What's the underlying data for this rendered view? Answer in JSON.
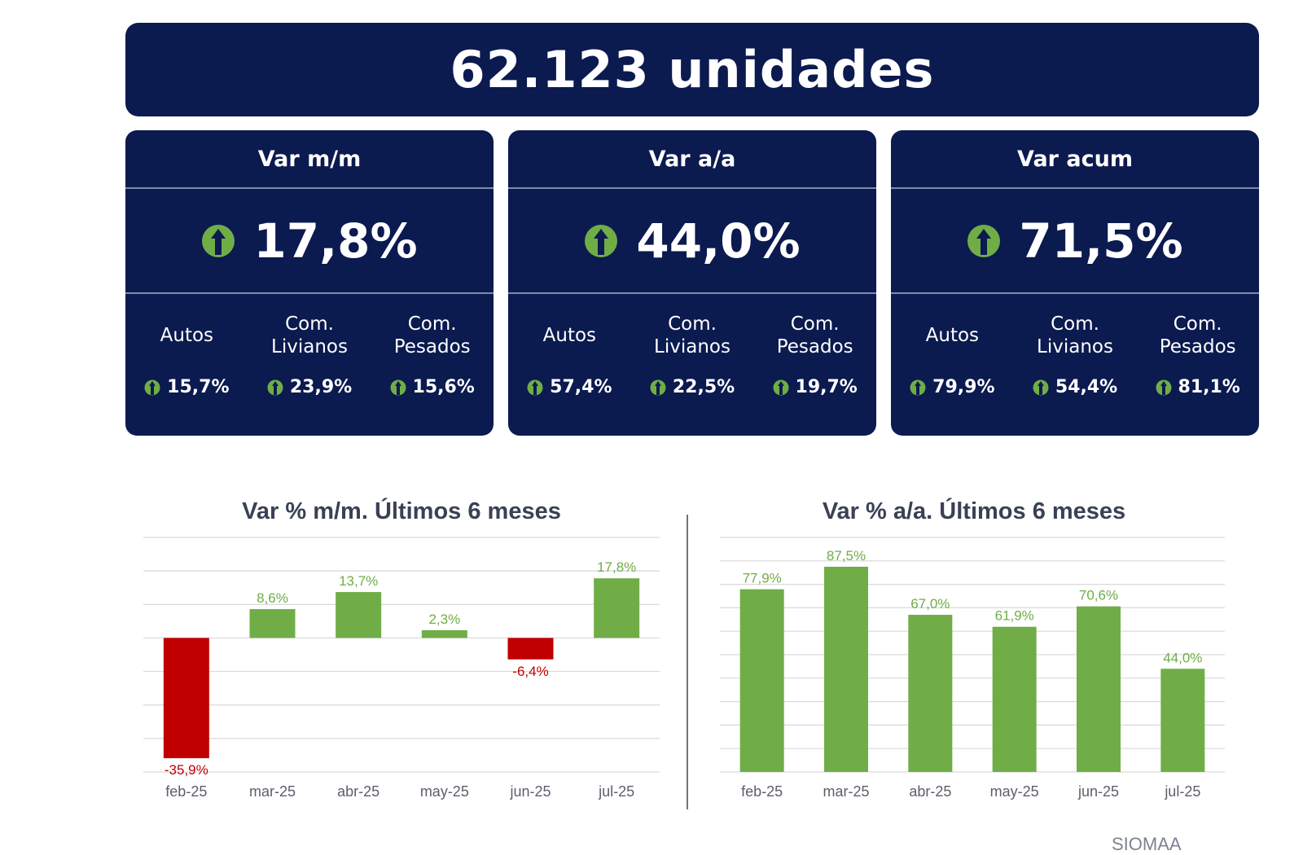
{
  "header": {
    "total": "62.123 unidades"
  },
  "colors": {
    "navy": "#0b1a4f",
    "positive": "#70ad47",
    "negative": "#c00000",
    "arrow": "#70ad47"
  },
  "cards": [
    {
      "title": "Var m/m",
      "value": "17,8%",
      "sub": [
        {
          "label": "Autos",
          "value": "15,7%"
        },
        {
          "label": "Com.\nLivianos",
          "value": "23,9%"
        },
        {
          "label": "Com.\nPesados",
          "value": "15,6%"
        }
      ]
    },
    {
      "title": "Var a/a",
      "value": "44,0%",
      "sub": [
        {
          "label": "Autos",
          "value": "57,4%"
        },
        {
          "label": "Com.\nLivianos",
          "value": "22,5%"
        },
        {
          "label": "Com.\nPesados",
          "value": "19,7%"
        }
      ]
    },
    {
      "title": "Var acum",
      "value": "71,5%",
      "sub": [
        {
          "label": "Autos",
          "value": "79,9%"
        },
        {
          "label": "Com.\nLivianos",
          "value": "54,4%"
        },
        {
          "label": "Com.\nPesados",
          "value": "81,1%"
        }
      ]
    }
  ],
  "chart_data": [
    {
      "type": "bar",
      "title": "Var % m/m. Últimos 6 meses",
      "categories": [
        "feb-25",
        "mar-25",
        "abr-25",
        "may-25",
        "jun-25",
        "jul-25"
      ],
      "values": [
        -35.9,
        8.6,
        13.7,
        2.3,
        -6.4,
        17.8
      ],
      "labels": [
        "-35,9%",
        "8,6%",
        "13,7%",
        "2,3%",
        "-6,4%",
        "17,8%"
      ],
      "ylim": [
        -40,
        30
      ],
      "grid": true
    },
    {
      "type": "bar",
      "title": "Var % a/a. Últimos 6 meses",
      "categories": [
        "feb-25",
        "mar-25",
        "abr-25",
        "may-25",
        "jun-25",
        "jul-25"
      ],
      "values": [
        77.9,
        87.5,
        67.0,
        61.9,
        70.6,
        44.0
      ],
      "labels": [
        "77,9%",
        "87,5%",
        "67,0%",
        "61,9%",
        "70,6%",
        "44,0%"
      ],
      "ylim": [
        0,
        100
      ],
      "grid": true
    }
  ],
  "footer": {
    "logo": "SIOMAA"
  }
}
